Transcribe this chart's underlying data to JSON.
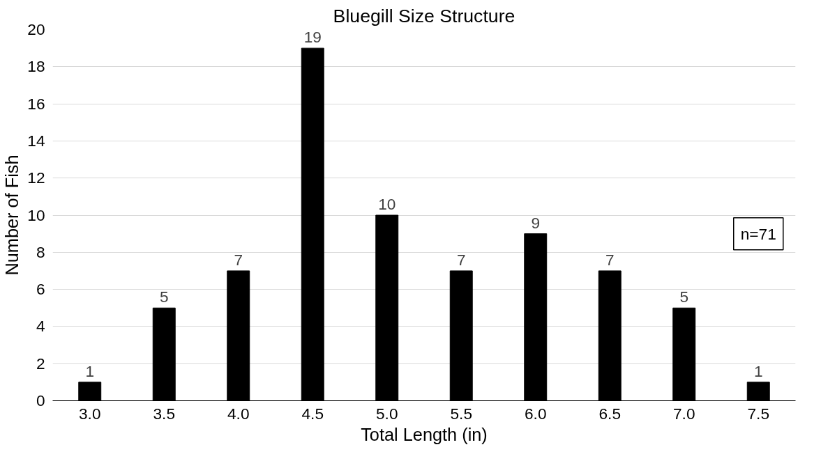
{
  "chart_data": {
    "type": "bar",
    "title": "Bluegill Size Structure",
    "xlabel": "Total Length (in)",
    "ylabel": "Number of Fish",
    "categories": [
      "3.0",
      "3.5",
      "4.0",
      "4.5",
      "5.0",
      "5.5",
      "6.0",
      "6.5",
      "7.0",
      "7.5"
    ],
    "values": [
      1,
      5,
      7,
      19,
      10,
      7,
      9,
      7,
      5,
      1
    ],
    "color": "#000000",
    "ylim": [
      0,
      20
    ],
    "yticks": [
      0,
      2,
      4,
      6,
      8,
      10,
      12,
      14,
      16,
      18,
      20
    ],
    "grid": "y",
    "data_labels": true,
    "annotations": [
      "n=71"
    ]
  }
}
